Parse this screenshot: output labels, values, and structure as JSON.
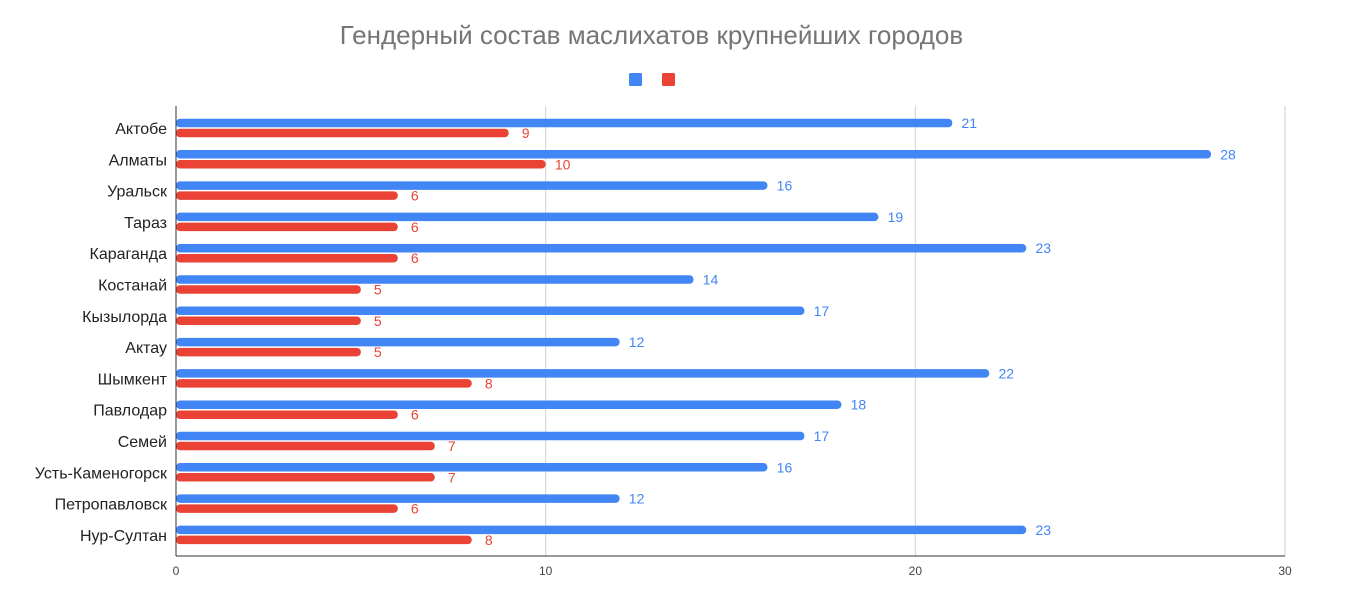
{
  "chart_data": {
    "type": "bar",
    "orientation": "horizontal",
    "title": "Гендерный состав маслихатов крупнейших городов",
    "xlabel": "",
    "ylabel": "",
    "xlim": [
      0,
      30
    ],
    "x_ticks": [
      0,
      10,
      20,
      30
    ],
    "grid": true,
    "legend_position": "top",
    "categories": [
      "Актобе",
      "Алматы",
      "Уральск",
      "Тараз",
      "Караганда",
      "Костанай",
      "Кызылорда",
      "Актау",
      "Шымкент",
      "Павлодар",
      "Семей",
      "Усть-Каменогорск",
      "Петропавловск",
      "Нур-Султан"
    ],
    "series": [
      {
        "color": "#4285F4",
        "values": [
          21,
          28,
          16,
          19,
          23,
          14,
          17,
          12,
          22,
          18,
          17,
          16,
          12,
          23
        ]
      },
      {
        "color": "#EA4335",
        "values": [
          9,
          10,
          6,
          6,
          6,
          5,
          5,
          5,
          8,
          6,
          7,
          7,
          6,
          8
        ]
      }
    ]
  }
}
